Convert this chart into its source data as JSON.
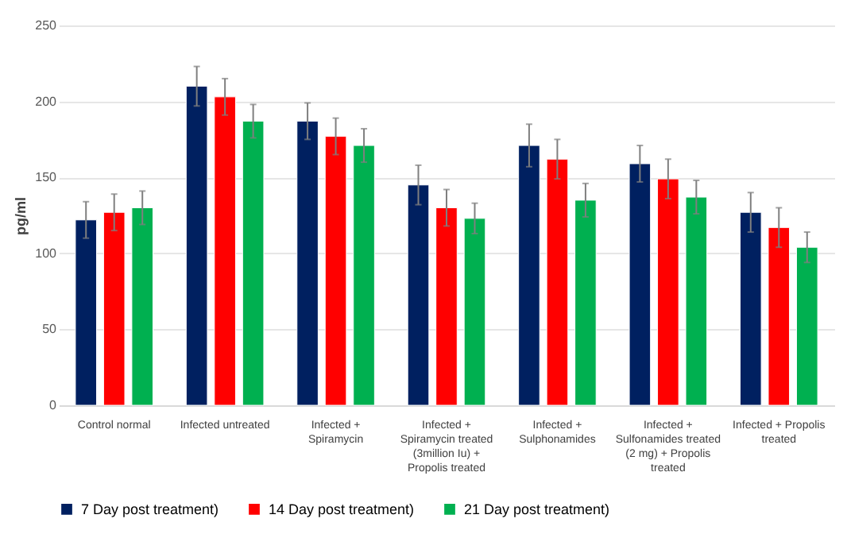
{
  "chart_data": {
    "type": "bar",
    "ylabel": "pg/ml",
    "categories": [
      "Control normal",
      "Infected untreated",
      "Infected + Spiramycin",
      "Infected + Spiramycin treated (3million Iu) + Propolis treated",
      "Infected + Sulphonamides",
      "Infected + Sulfonamides treated (2 mg) + Propolis treated",
      "Infected + Propolis treated"
    ],
    "series": [
      {
        "name": "7 Day post treatment)",
        "color": "#002060",
        "values": [
          122,
          210,
          187,
          145,
          171,
          159,
          127
        ],
        "errors": [
          12,
          13,
          12,
          13,
          14,
          12,
          13
        ]
      },
      {
        "name": "14 Day post treatment)",
        "color": "#ff0000",
        "values": [
          127,
          203,
          177,
          130,
          162,
          149,
          117
        ],
        "errors": [
          12,
          12,
          12,
          12,
          13,
          13,
          13
        ]
      },
      {
        "name": "21 Day post treatment)",
        "color": "#00b050",
        "values": [
          130,
          187,
          171,
          123,
          135,
          137,
          104
        ],
        "errors": [
          11,
          11,
          11,
          10,
          11,
          11,
          10
        ]
      }
    ],
    "ylim": [
      0,
      250
    ],
    "yticks": [
      0,
      50,
      100,
      150,
      200,
      250
    ],
    "grid": "y",
    "legend": "bottom"
  }
}
